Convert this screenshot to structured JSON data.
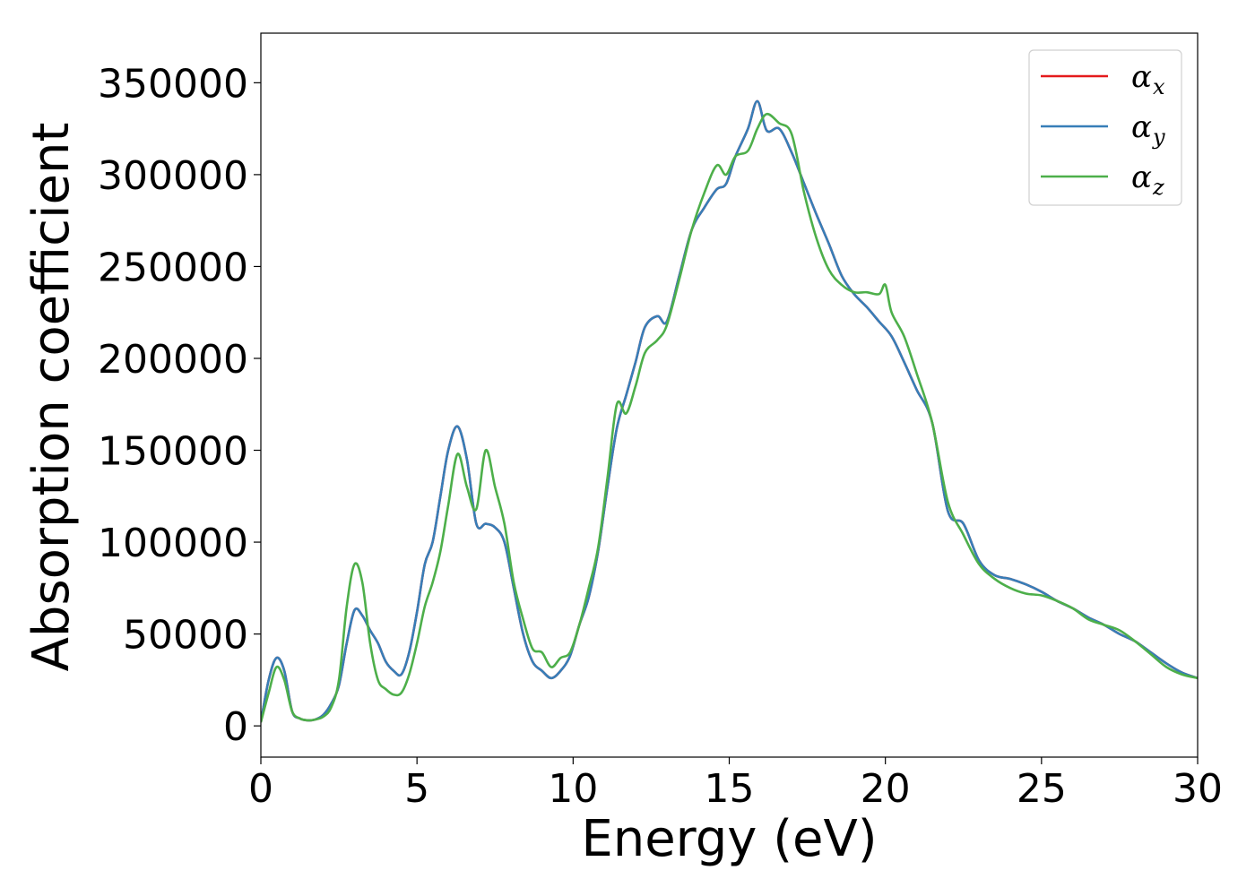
{
  "chart_data": {
    "type": "line",
    "xlabel": "Energy (eV)",
    "ylabel": "Absorption coefficient",
    "xlim": [
      0,
      30
    ],
    "ylim": [
      -17000,
      377000
    ],
    "xticks": [
      0,
      5,
      10,
      15,
      20,
      25,
      30
    ],
    "xtick_labels": [
      "0",
      "5",
      "10",
      "15",
      "20",
      "25",
      "30"
    ],
    "yticks": [
      0,
      50000,
      100000,
      150000,
      200000,
      250000,
      300000,
      350000
    ],
    "ytick_labels": [
      "0",
      "50000",
      "100000",
      "150000",
      "200000",
      "250000",
      "300000",
      "350000"
    ],
    "grid": false,
    "legend_position": "top-right",
    "series": [
      {
        "name": "α_x",
        "symbol": "α",
        "subscript": "x",
        "color": "#e41a1c",
        "x": [
          0,
          0.25,
          0.5,
          0.75,
          1.0,
          1.25,
          1.5,
          1.75,
          2.0,
          2.25,
          2.5,
          2.75,
          3.0,
          3.25,
          3.5,
          3.75,
          4.0,
          4.25,
          4.5,
          4.75,
          5.0,
          5.25,
          5.5,
          5.75,
          6.0,
          6.3,
          6.6,
          6.9,
          7.2,
          7.5,
          7.8,
          8.1,
          8.4,
          8.7,
          9.0,
          9.3,
          9.6,
          9.9,
          10.2,
          10.5,
          10.8,
          11.1,
          11.4,
          11.7,
          12.0,
          12.3,
          12.7,
          13.0,
          13.4,
          13.8,
          14.2,
          14.6,
          14.9,
          15.2,
          15.6,
          15.9,
          16.2,
          16.6,
          17.0,
          17.4,
          17.8,
          18.2,
          18.6,
          19.0,
          19.4,
          19.8,
          20.2,
          20.6,
          21.0,
          21.5,
          22.0,
          22.5,
          23.0,
          23.5,
          24.0,
          24.5,
          25.0,
          25.5,
          26.0,
          26.5,
          27.0,
          27.5,
          28.0,
          28.5,
          29.0,
          29.5,
          30.0
        ],
        "y": [
          2000,
          25000,
          37000,
          30000,
          8000,
          4000,
          3000,
          3500,
          6000,
          12000,
          22000,
          45000,
          63000,
          60000,
          52000,
          45000,
          35000,
          30000,
          28000,
          40000,
          62000,
          88000,
          100000,
          125000,
          150000,
          163000,
          145000,
          110000,
          110000,
          108000,
          100000,
          75000,
          50000,
          35000,
          30000,
          26000,
          30000,
          38000,
          55000,
          70000,
          95000,
          130000,
          162000,
          180000,
          198000,
          217000,
          223000,
          220000,
          245000,
          270000,
          282000,
          292000,
          295000,
          310000,
          325000,
          340000,
          324000,
          325000,
          312000,
          295000,
          278000,
          262000,
          245000,
          235000,
          228000,
          220000,
          212000,
          198000,
          183000,
          165000,
          117000,
          110000,
          90000,
          82000,
          80000,
          77000,
          73000,
          68000,
          64000,
          59000,
          55000,
          50000,
          46000,
          40000,
          34000,
          29000,
          26000
        ]
      },
      {
        "name": "α_y",
        "symbol": "α",
        "subscript": "y",
        "color": "#377eb8",
        "x": [
          0,
          0.25,
          0.5,
          0.75,
          1.0,
          1.25,
          1.5,
          1.75,
          2.0,
          2.25,
          2.5,
          2.75,
          3.0,
          3.25,
          3.5,
          3.75,
          4.0,
          4.25,
          4.5,
          4.75,
          5.0,
          5.25,
          5.5,
          5.75,
          6.0,
          6.3,
          6.6,
          6.9,
          7.2,
          7.5,
          7.8,
          8.1,
          8.4,
          8.7,
          9.0,
          9.3,
          9.6,
          9.9,
          10.2,
          10.5,
          10.8,
          11.1,
          11.4,
          11.7,
          12.0,
          12.3,
          12.7,
          13.0,
          13.4,
          13.8,
          14.2,
          14.6,
          14.9,
          15.2,
          15.6,
          15.9,
          16.2,
          16.6,
          17.0,
          17.4,
          17.8,
          18.2,
          18.6,
          19.0,
          19.4,
          19.8,
          20.2,
          20.6,
          21.0,
          21.5,
          22.0,
          22.5,
          23.0,
          23.5,
          24.0,
          24.5,
          25.0,
          25.5,
          26.0,
          26.5,
          27.0,
          27.5,
          28.0,
          28.5,
          29.0,
          29.5,
          30.0
        ],
        "y": [
          2000,
          25000,
          37000,
          30000,
          8000,
          4000,
          3000,
          3500,
          6000,
          12000,
          22000,
          45000,
          63000,
          60000,
          52000,
          45000,
          35000,
          30000,
          28000,
          40000,
          62000,
          88000,
          100000,
          125000,
          150000,
          163000,
          145000,
          110000,
          110000,
          108000,
          100000,
          75000,
          50000,
          35000,
          30000,
          26000,
          30000,
          38000,
          55000,
          70000,
          95000,
          130000,
          162000,
          180000,
          198000,
          217000,
          223000,
          220000,
          245000,
          270000,
          282000,
          292000,
          295000,
          310000,
          325000,
          340000,
          324000,
          325000,
          312000,
          295000,
          278000,
          262000,
          245000,
          235000,
          228000,
          220000,
          212000,
          198000,
          183000,
          165000,
          117000,
          110000,
          90000,
          82000,
          80000,
          77000,
          73000,
          68000,
          64000,
          59000,
          55000,
          50000,
          46000,
          40000,
          34000,
          29000,
          26000
        ]
      },
      {
        "name": "α_z",
        "symbol": "α",
        "subscript": "z",
        "color": "#4daf4a",
        "x": [
          0,
          0.25,
          0.5,
          0.75,
          1.0,
          1.25,
          1.5,
          1.75,
          2.0,
          2.25,
          2.5,
          2.75,
          3.0,
          3.25,
          3.5,
          3.75,
          4.0,
          4.25,
          4.5,
          4.75,
          5.0,
          5.25,
          5.5,
          5.75,
          6.0,
          6.3,
          6.6,
          6.9,
          7.2,
          7.5,
          7.8,
          8.1,
          8.4,
          8.7,
          9.0,
          9.3,
          9.6,
          9.9,
          10.2,
          10.5,
          10.8,
          11.1,
          11.4,
          11.7,
          12.0,
          12.3,
          12.7,
          13.0,
          13.4,
          13.8,
          14.2,
          14.6,
          14.9,
          15.2,
          15.6,
          15.9,
          16.2,
          16.6,
          17.0,
          17.4,
          17.8,
          18.2,
          18.6,
          19.0,
          19.4,
          19.8,
          20.0,
          20.2,
          20.6,
          21.0,
          21.5,
          22.0,
          22.5,
          23.0,
          23.5,
          24.0,
          24.5,
          25.0,
          25.5,
          26.0,
          26.5,
          27.0,
          27.5,
          28.0,
          28.5,
          29.0,
          29.5,
          30.0
        ],
        "y": [
          2000,
          18000,
          32000,
          25000,
          8000,
          4000,
          3000,
          3500,
          5000,
          10000,
          25000,
          65000,
          88000,
          78000,
          45000,
          25000,
          20000,
          17000,
          18000,
          28000,
          45000,
          65000,
          78000,
          95000,
          120000,
          148000,
          130000,
          118000,
          150000,
          130000,
          110000,
          78000,
          58000,
          42000,
          40000,
          32000,
          37000,
          40000,
          55000,
          75000,
          97000,
          135000,
          175000,
          170000,
          185000,
          203000,
          210000,
          218000,
          243000,
          270000,
          290000,
          305000,
          300000,
          310000,
          313000,
          325000,
          333000,
          328000,
          322000,
          290000,
          265000,
          248000,
          240000,
          236000,
          236000,
          235000,
          240000,
          225000,
          212000,
          192000,
          165000,
          122000,
          104000,
          88000,
          80000,
          75000,
          72000,
          71000,
          68000,
          64000,
          58000,
          55000,
          52000,
          46000,
          39000,
          32000,
          28000,
          26000
        ]
      }
    ]
  }
}
